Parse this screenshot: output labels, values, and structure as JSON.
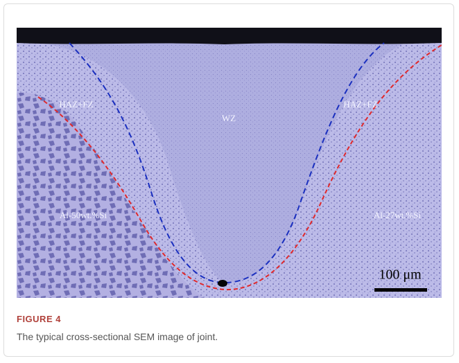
{
  "figure": {
    "image": {
      "labels": [
        "HAZ+FZ",
        "WZ",
        "HAZ+FZ",
        "Al-50wt.%Si",
        "Al-27wt.%Si"
      ],
      "scale_bar": "100 μm"
    },
    "label": "FIGURE 4",
    "caption": "The typical cross-sectional SEM image of joint."
  }
}
